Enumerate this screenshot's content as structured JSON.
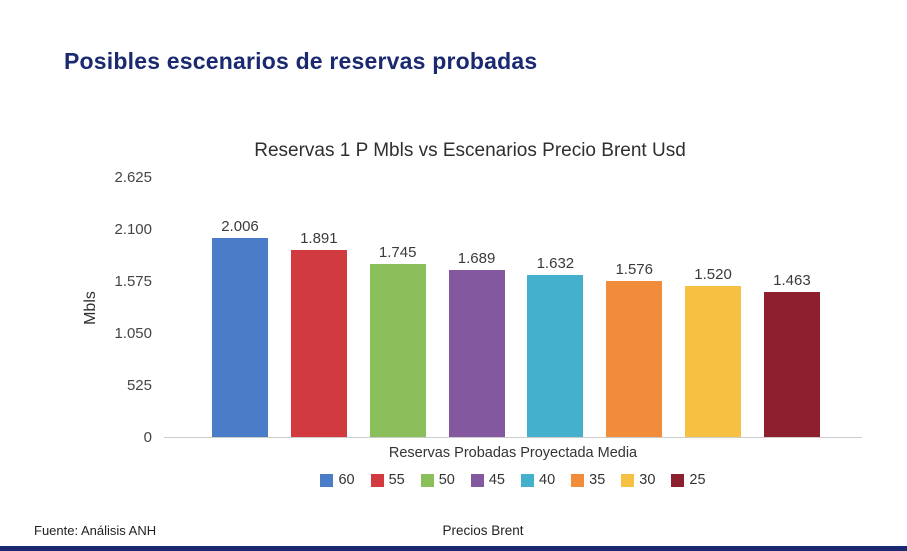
{
  "page": {
    "title": "Posibles escenarios de reservas probadas",
    "footer_source": "Fuente: Análisis ANH",
    "footer_center": "Precios Brent",
    "accent_color": "#1b2a70"
  },
  "chart_data": {
    "type": "bar",
    "title": "Reservas 1 P Mbls  vs Escenarios Precio Brent Usd",
    "ylabel": "Mbls",
    "xlabel": "Reservas Probadas Proyectada Media",
    "categories": [
      "60",
      "55",
      "50",
      "45",
      "40",
      "35",
      "30",
      "25"
    ],
    "values": [
      2006,
      1891,
      1745,
      1689,
      1632,
      1576,
      1520,
      1463
    ],
    "value_labels": [
      "2.006",
      "1.891",
      "1.745",
      "1.689",
      "1.632",
      "1.576",
      "1.520",
      "1.463"
    ],
    "colors": [
      "#4a7cc7",
      "#d13b40",
      "#8bbf5c",
      "#84589f",
      "#45b0cb",
      "#f08c3a",
      "#f6c143",
      "#8e1f2f"
    ],
    "ylim": [
      0,
      2625
    ],
    "yticks": [
      0,
      525,
      1050,
      1575,
      2100,
      2625
    ],
    "ytick_labels": [
      "0",
      "525",
      "1.050",
      "1.575",
      "2.100",
      "2.625"
    ],
    "grid": false,
    "legend_position": "bottom"
  }
}
